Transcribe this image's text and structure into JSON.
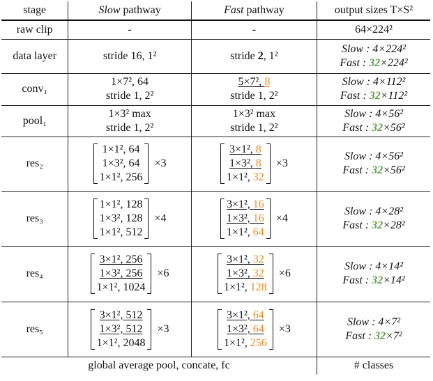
{
  "header": {
    "stage": "stage",
    "slow_word": "Slow",
    "pathway": " pathway",
    "fast_word": "Fast",
    "output": "output sizes T×S²"
  },
  "raw": {
    "stage": "raw clip",
    "slow": "-",
    "fast": "-",
    "out": "64×224²"
  },
  "data_layer": {
    "stage": "data layer",
    "slow": "stride 16, 1²",
    "fast_pre": "stride ",
    "fast_bold": "2",
    "fast_post": ", 1²",
    "out_slow": "Slow : 4×224²",
    "out_fast_pre": "Fast : ",
    "out_fast_num": "32",
    "out_fast_post": "×224²"
  },
  "conv1": {
    "stage": "conv₁",
    "slow_l1": "1×7², 64",
    "slow_l2": "stride 1, 2²",
    "fast_l1_pre": "5×7², ",
    "fast_l1_num": "8",
    "fast_l2": "stride 1, 2²",
    "out_slow": "Slow : 4×112²",
    "out_fast_pre": "Fast : ",
    "out_fast_num": "32",
    "out_fast_post": "×112²"
  },
  "pool1": {
    "stage": "pool₁",
    "slow_l1": "1×3² max",
    "slow_l2": "stride 1, 2²",
    "fast_l1": "1×3² max",
    "fast_l2": "stride 1, 2²",
    "out_slow": "Slow : 4×56²",
    "out_fast_pre": "Fast : ",
    "out_fast_num": "32",
    "out_fast_post": "×56²"
  },
  "res2": {
    "stage": "res₂",
    "slow": [
      "1×1², 64",
      "1×3², 64",
      "1×1², 256"
    ],
    "slow_mult": "×3",
    "fast_pre": [
      "3×1², ",
      "1×3², ",
      "1×1², "
    ],
    "fast_num": [
      "8",
      "8",
      "32"
    ],
    "fast_mult": "×3",
    "out_slow": "Slow : 4×56²",
    "out_fast_pre": "Fast : ",
    "out_fast_num": "32",
    "out_fast_post": "×56²"
  },
  "res3": {
    "stage": "res₃",
    "slow": [
      "1×1², 128",
      "1×3², 128",
      "1×1², 512"
    ],
    "slow_mult": "×4",
    "fast_pre": [
      "3×1², ",
      "1×3², ",
      "1×1², "
    ],
    "fast_num": [
      "16",
      "16",
      "64"
    ],
    "fast_mult": "×4",
    "out_slow": "Slow : 4×28²",
    "out_fast_pre": "Fast : ",
    "out_fast_num": "32",
    "out_fast_post": "×28²"
  },
  "res4": {
    "stage": "res₄",
    "slow": [
      "3×1², 256",
      "1×3², 256",
      "1×1², 1024"
    ],
    "slow_mult": "×6",
    "fast_pre": [
      "3×1², ",
      "1×3², ",
      "1×1², "
    ],
    "fast_num": [
      "32",
      "32",
      "128"
    ],
    "fast_mult": "×6",
    "out_slow": "Slow : 4×14²",
    "out_fast_pre": "Fast : ",
    "out_fast_num": "32",
    "out_fast_post": "×14²"
  },
  "res5": {
    "stage": "res₅",
    "slow": [
      "3×1², 512",
      "1×3², 512",
      "1×1², 2048"
    ],
    "slow_mult": "×3",
    "fast_pre": [
      "3×1², ",
      "1×3², ",
      "1×1², "
    ],
    "fast_num": [
      "64",
      "64",
      "256"
    ],
    "fast_mult": "×3",
    "out_slow": "Slow : 4×7²",
    "out_fast_pre": "Fast : ",
    "out_fast_num": "32",
    "out_fast_post": "×7²"
  },
  "footer": {
    "left": "global average pool, concate, fc",
    "right": "# classes"
  },
  "colors": {
    "fast_channel": "#f28a25",
    "fast_frames": "#5ba04c"
  }
}
